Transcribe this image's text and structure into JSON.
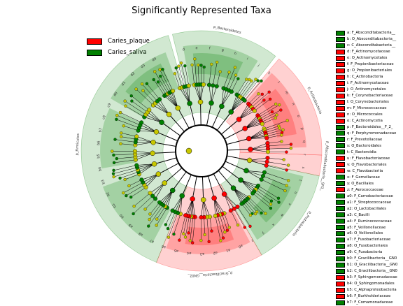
{
  "title": "Significantly Represented Taxa",
  "colors": {
    "Caries_plaque": "#ff0000",
    "Caries_saliva": "#008000",
    "neutral_node": "#c8c800",
    "plaque_band": "#ff0000",
    "saliva_band": "#008000"
  },
  "legend": [
    {
      "label": "Caries_plaque",
      "color": "#ff0000"
    },
    {
      "label": "Caries_saliva",
      "color": "#008000"
    }
  ],
  "taxa_legend": [
    {
      "text": "a: F_Absconditabacteria__",
      "group": "saliva"
    },
    {
      "text": "b: O_Absconditabacteria__",
      "group": "saliva"
    },
    {
      "text": "c: C_Absconditabacteria__",
      "group": "saliva"
    },
    {
      "text": "d: F_Actinomycetaceae",
      "group": "plaque"
    },
    {
      "text": "e: O_Actinomycetales",
      "group": "plaque"
    },
    {
      "text": "f: F_Propionibacteriaceae",
      "group": "plaque"
    },
    {
      "text": "g: O_Propionibacteriales",
      "group": "plaque"
    },
    {
      "text": "h: C_Actinobacteria",
      "group": "plaque"
    },
    {
      "text": "i: F_Actinomycetaceae",
      "group": "plaque"
    },
    {
      "text": "j: O_Actinomycetales",
      "group": "plaque"
    },
    {
      "text": "k: F_Corynebacteriaceae",
      "group": "plaque"
    },
    {
      "text": "l: O_Corynebacteriales",
      "group": "plaque"
    },
    {
      "text": "m: F_Micrococcaceae",
      "group": "plaque"
    },
    {
      "text": "n: O_Micrococcales",
      "group": "plaque"
    },
    {
      "text": "o: C_Actinomycetia",
      "group": "plaque"
    },
    {
      "text": "p: F_Bacteroidales__F_2_",
      "group": "saliva"
    },
    {
      "text": "q: F_Porphyromonadaceae",
      "group": "saliva"
    },
    {
      "text": "r: F_Prevotellaceae",
      "group": "saliva"
    },
    {
      "text": "s: O_Bacteroidales",
      "group": "saliva"
    },
    {
      "text": "t: C_Bacteroidia",
      "group": "saliva"
    },
    {
      "text": "u: F_Flavobacteriaceae",
      "group": "plaque"
    },
    {
      "text": "v: O_Flavobacteriales",
      "group": "plaque"
    },
    {
      "text": "w: C_Flavobacteriia",
      "group": "plaque"
    },
    {
      "text": "x: F_Gemellaceae",
      "group": "saliva"
    },
    {
      "text": "y: O_Bacillales",
      "group": "saliva"
    },
    {
      "text": "z: F_Aerococcaceae",
      "group": "plaque"
    },
    {
      "text": "a0: F_Carnobacteriaceae",
      "group": "saliva"
    },
    {
      "text": "a1: F_Streptococcaceae",
      "group": "saliva"
    },
    {
      "text": "a2: O_Lactobacillales",
      "group": "saliva"
    },
    {
      "text": "a3: C_Bacilli",
      "group": "saliva"
    },
    {
      "text": "a4: F_Ruminococcaceae",
      "group": "saliva"
    },
    {
      "text": "a5: F_Veillonellaceae",
      "group": "saliva"
    },
    {
      "text": "a6: O_Veillonellales",
      "group": "saliva"
    },
    {
      "text": "a7: F_Fusobacteriaceae",
      "group": "saliva"
    },
    {
      "text": "a8: O_Fusobacteriales",
      "group": "saliva"
    },
    {
      "text": "a9: C_Fusobacteria",
      "group": "saliva"
    },
    {
      "text": "b0: F_Gracilibacteria__GN0",
      "group": "saliva"
    },
    {
      "text": "b1: O_Gracilibacteria__GN0",
      "group": "saliva"
    },
    {
      "text": "b2: C_Gracilibacteria__GN0",
      "group": "saliva"
    },
    {
      "text": "b3: F_Sphingomonadaceae",
      "group": "plaque"
    },
    {
      "text": "b4: O_Sphingomonadales",
      "group": "plaque"
    },
    {
      "text": "b5: C_Alphaproteobacteria",
      "group": "plaque"
    },
    {
      "text": "b6: F_Burkholderiaceae",
      "group": "plaque"
    },
    {
      "text": "b7: F_Comamonadaceae",
      "group": "saliva"
    }
  ],
  "chart_data": {
    "type": "cladogram",
    "title": "Significantly Represented Taxa",
    "classes": [
      "Caries_plaque",
      "Caries_saliva"
    ],
    "phyla": [
      {
        "label": "p_Bacteroidetes",
        "group": "saliva",
        "start_deg": -104,
        "end_deg": -52
      },
      {
        "label": "p_Actinobacteria",
        "group": "plaque",
        "start_deg": -50,
        "end_deg": 2
      },
      {
        "label": "p_Absconditabacteria__SR1_",
        "group": "plaque",
        "start_deg": 2,
        "end_deg": 12
      },
      {
        "label": "p_Proteobacteria",
        "group": "saliva",
        "start_deg": 12,
        "end_deg": 60
      },
      {
        "label": "p_Gracilibacteria__GN02_",
        "group": "plaque",
        "start_deg": 60,
        "end_deg": 112
      },
      {
        "label": "p_Firmicutes",
        "group": "saliva",
        "start_deg": 112,
        "end_deg": 254
      }
    ],
    "clade_labels": [
      "d",
      "e",
      "f",
      "g",
      "h",
      "i",
      "j",
      "k",
      "l",
      "m",
      "n",
      "o",
      "p",
      "q",
      "r",
      "s",
      "t",
      "u",
      "v",
      "w",
      "x",
      "y",
      "z",
      "a0",
      "a1",
      "a2",
      "a3",
      "a4",
      "a5",
      "a6",
      "a7",
      "a8",
      "a9",
      "b0",
      "b1",
      "b2",
      "b3",
      "b4",
      "b5",
      "b6",
      "b7",
      "c8",
      "c9",
      "d0",
      "d1",
      "d2",
      "d3",
      "d4"
    ]
  }
}
